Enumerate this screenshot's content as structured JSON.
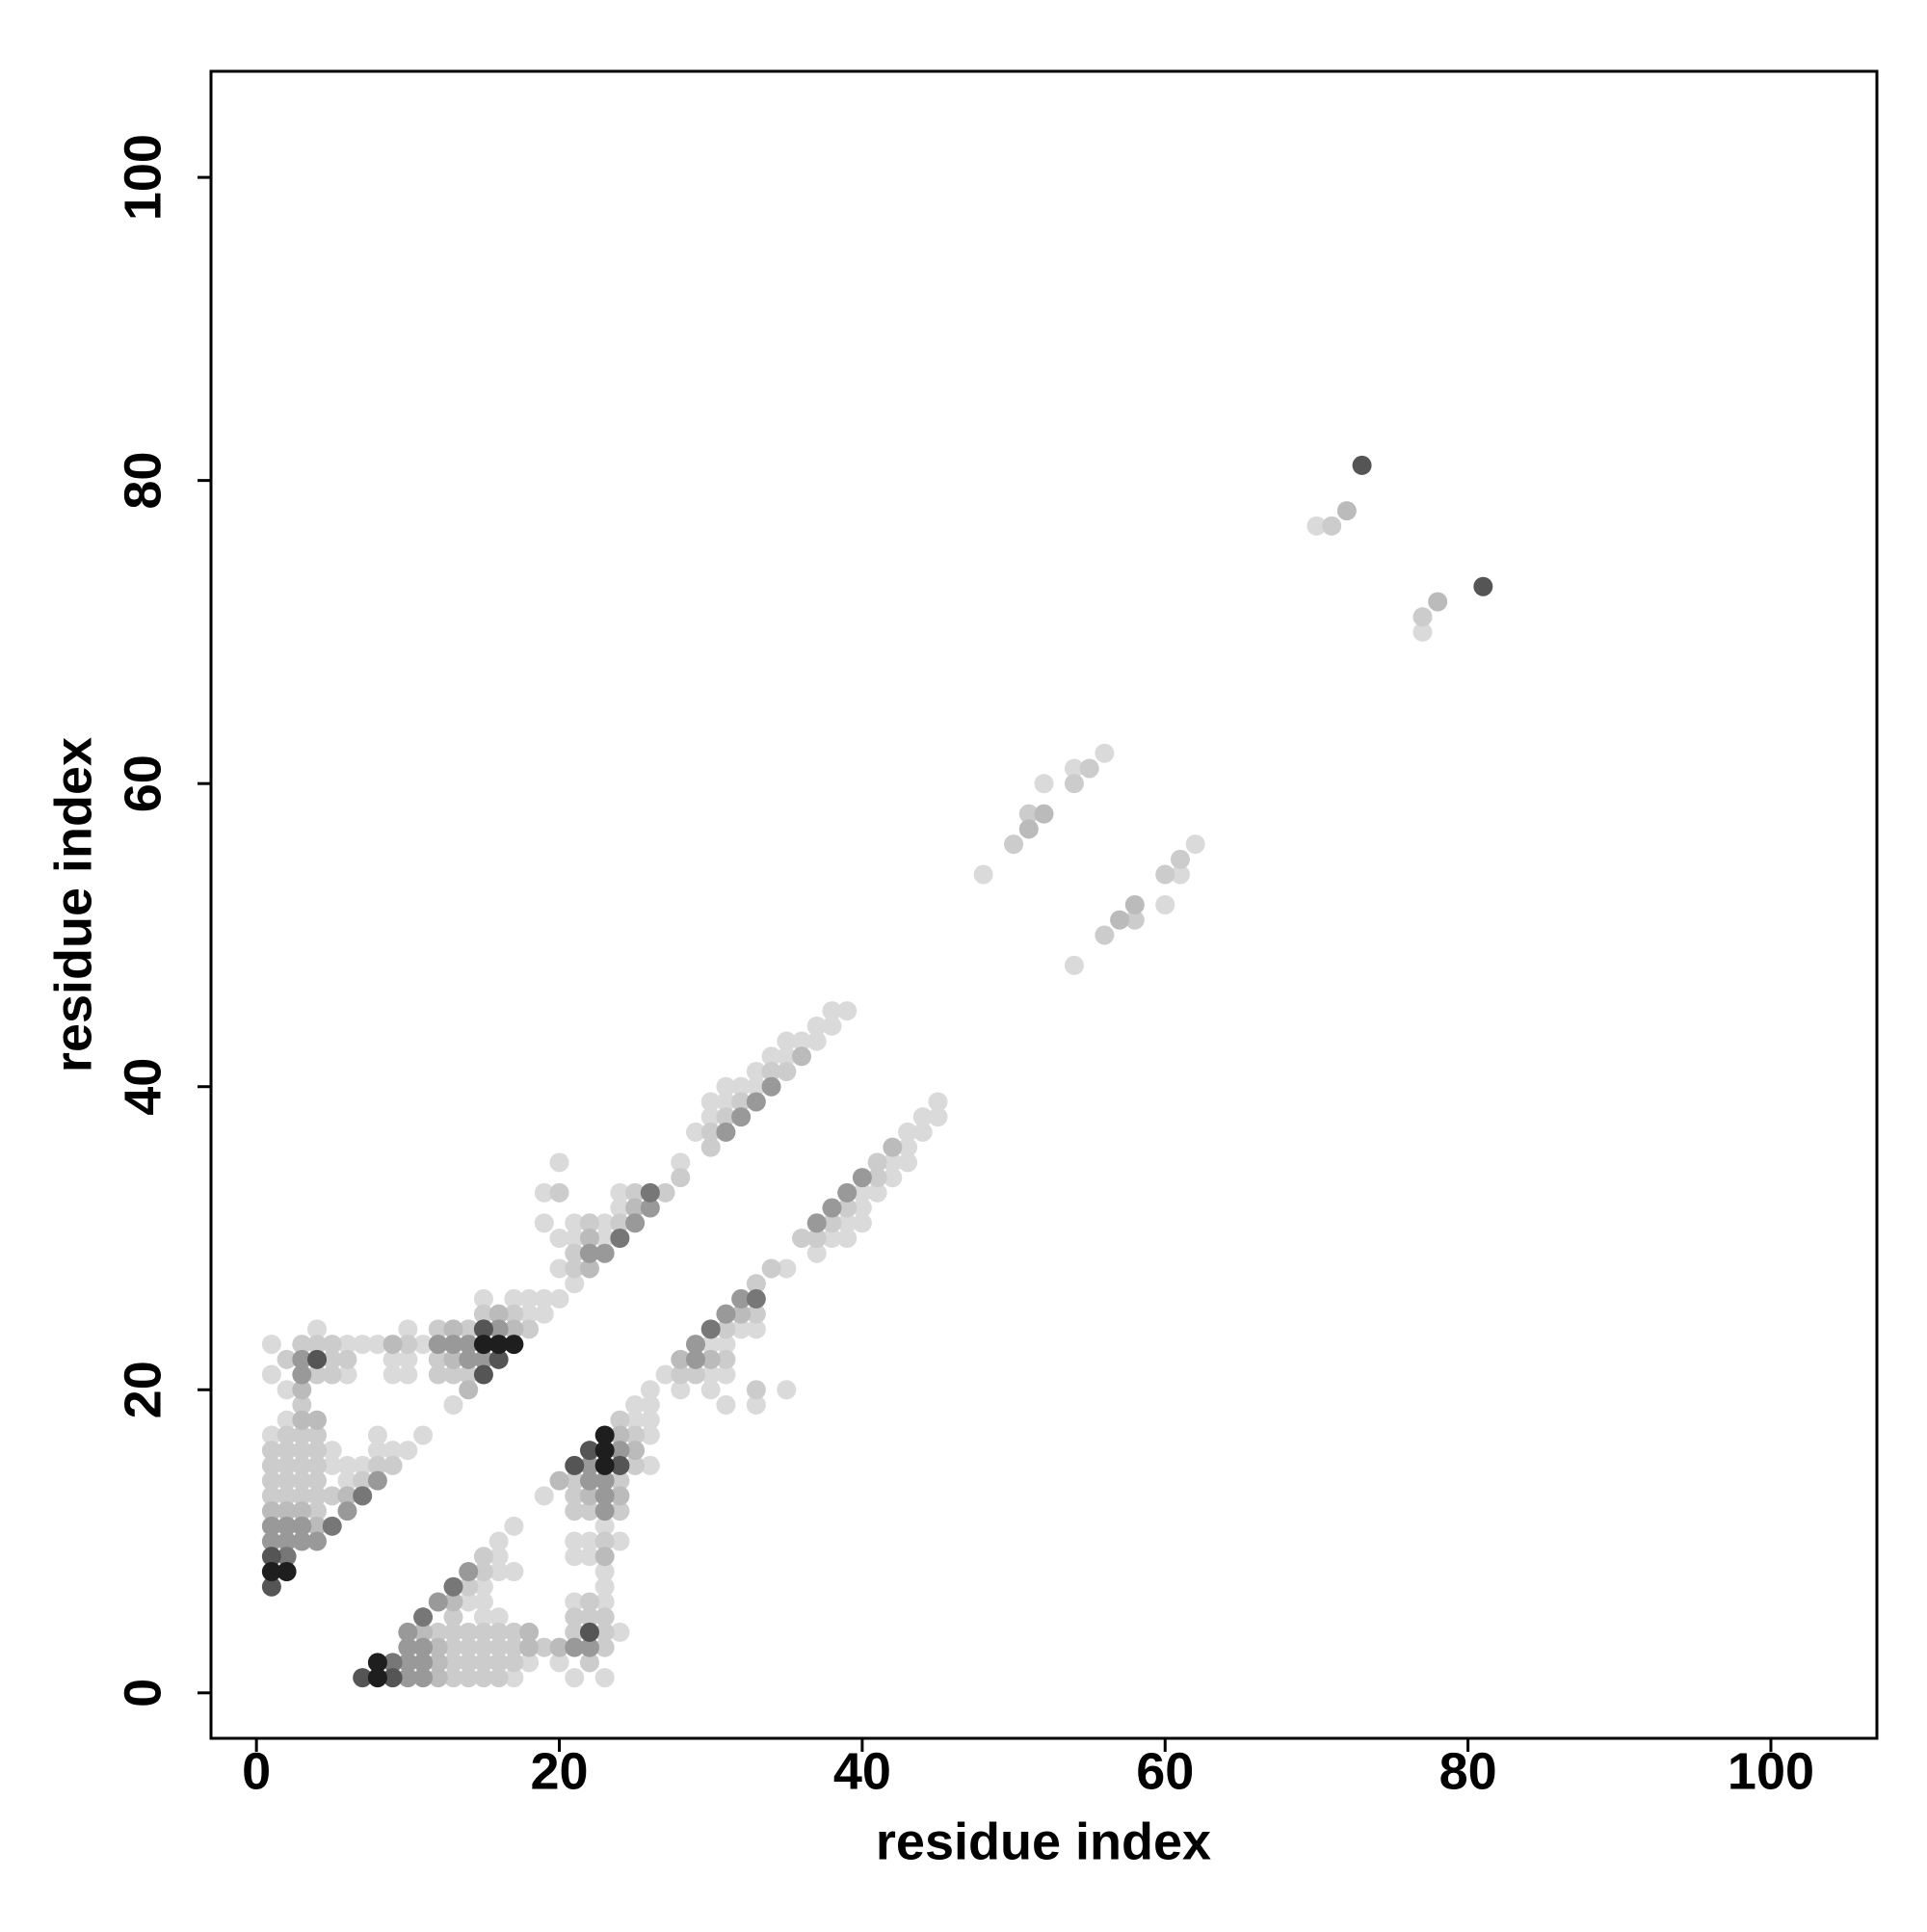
{
  "chart_data": {
    "type": "scatter",
    "x_label": "residue index",
    "y_label": "residue index",
    "xlim": [
      -3,
      107
    ],
    "ylim": [
      -3,
      107
    ],
    "xticks": [
      0,
      20,
      40,
      60,
      80,
      100
    ],
    "yticks": [
      0,
      20,
      40,
      60,
      80,
      100
    ],
    "grid": false,
    "series": [
      {
        "color": "#dadada",
        "x": [
          1,
          1,
          1,
          2,
          2,
          4,
          5,
          5,
          6,
          6,
          6,
          6,
          7,
          7,
          8,
          8,
          8,
          9,
          9,
          9,
          10,
          10,
          10,
          10,
          11,
          11,
          13,
          15,
          17,
          18,
          18,
          19,
          19,
          19,
          19,
          20,
          20,
          20,
          20,
          21,
          21,
          21,
          23,
          23,
          24,
          24,
          28,
          29,
          30,
          30,
          31,
          31,
          32,
          33,
          33,
          34,
          35,
          35,
          36,
          37,
          37,
          38,
          38,
          39,
          48,
          52,
          54,
          56,
          70,
          17,
          21,
          23,
          18,
          20,
          24,
          15,
          16,
          14,
          15,
          21,
          23,
          15,
          23,
          16,
          17,
          23,
          16,
          21,
          22,
          16,
          21,
          22,
          24,
          17,
          23,
          19,
          26,
          26,
          25,
          26,
          25,
          26,
          31,
          33,
          26,
          28,
          30,
          35,
          27,
          30,
          31,
          30,
          31,
          32,
          33,
          35,
          37,
          38,
          39,
          39,
          40,
          40,
          40,
          41,
          42,
          42,
          43,
          43,
          43,
          44,
          44,
          45,
          45,
          54,
          60,
          61,
          62,
          77
        ],
        "y": [
          17,
          21,
          23,
          18,
          20,
          24,
          15,
          16,
          14,
          15,
          21,
          23,
          15,
          23,
          16,
          17,
          23,
          16,
          21,
          22,
          16,
          21,
          22,
          24,
          17,
          23,
          19,
          26,
          26,
          25,
          26,
          25,
          26,
          31,
          33,
          26,
          28,
          30,
          35,
          27,
          30,
          31,
          30,
          31,
          32,
          33,
          35,
          37,
          38,
          39,
          39,
          40,
          40,
          40,
          41,
          42,
          42,
          43,
          43,
          43,
          44,
          44,
          45,
          45,
          54,
          60,
          61,
          62,
          77,
          1,
          1,
          1,
          2,
          2,
          4,
          5,
          5,
          6,
          6,
          6,
          6,
          7,
          7,
          8,
          8,
          8,
          9,
          9,
          9,
          10,
          10,
          10,
          10,
          11,
          11,
          13,
          15,
          17,
          18,
          18,
          19,
          19,
          19,
          19,
          20,
          20,
          20,
          20,
          21,
          21,
          21,
          23,
          23,
          24,
          24,
          28,
          29,
          30,
          30,
          31,
          31,
          32,
          33,
          33,
          34,
          35,
          35,
          36,
          37,
          37,
          38,
          38,
          39,
          48,
          52,
          54,
          56,
          70
        ]
      },
      {
        "color": "#cccccc",
        "x": [
          1,
          1,
          1,
          1,
          2,
          2,
          2,
          2,
          2,
          2,
          3,
          3,
          3,
          3,
          3,
          3,
          3,
          4,
          4,
          4,
          4,
          4,
          4,
          4,
          4,
          5,
          5,
          5,
          5,
          6,
          7,
          8,
          9,
          10,
          12,
          12,
          12,
          13,
          14,
          14,
          15,
          17,
          18,
          20,
          21,
          21,
          22,
          24,
          25,
          27,
          28,
          30,
          30,
          31,
          32,
          34,
          35,
          50,
          51,
          54,
          55,
          71,
          13,
          14,
          15,
          16,
          13,
          14,
          15,
          16,
          17,
          22,
          13,
          14,
          15,
          16,
          17,
          19,
          23,
          12,
          13,
          14,
          15,
          16,
          17,
          21,
          23,
          13,
          21,
          22,
          23,
          22,
          14,
          15,
          15,
          23,
          21,
          22,
          24,
          21,
          21,
          24,
          25,
          25,
          24,
          33,
          28,
          29,
          31,
          31,
          33,
          33,
          34,
          36,
          37,
          38,
          39,
          41,
          41,
          56,
          58,
          60,
          61,
          77
        ],
        "y": [
          13,
          14,
          15,
          16,
          13,
          14,
          15,
          16,
          17,
          22,
          13,
          14,
          15,
          16,
          17,
          19,
          23,
          12,
          13,
          14,
          15,
          16,
          17,
          21,
          23,
          13,
          21,
          22,
          23,
          22,
          14,
          15,
          15,
          23,
          21,
          22,
          24,
          21,
          21,
          24,
          25,
          25,
          24,
          33,
          28,
          29,
          31,
          31,
          33,
          33,
          34,
          36,
          37,
          38,
          39,
          41,
          41,
          56,
          58,
          60,
          61,
          77,
          1,
          1,
          1,
          1,
          2,
          2,
          2,
          2,
          2,
          2,
          3,
          3,
          3,
          3,
          3,
          3,
          3,
          4,
          4,
          4,
          4,
          4,
          4,
          4,
          4,
          5,
          5,
          5,
          5,
          6,
          7,
          8,
          9,
          10,
          12,
          12,
          12,
          13,
          14,
          14,
          15,
          17,
          18,
          20,
          21,
          21,
          22,
          24,
          25,
          27,
          28,
          30,
          30,
          31,
          32,
          34,
          35,
          50,
          51,
          54,
          55,
          71
        ]
      },
      {
        "color": "#bbbbbb",
        "x": [
          1,
          2,
          3,
          3,
          3,
          4,
          4,
          6,
          9,
          13,
          13,
          14,
          16,
          17,
          22,
          22,
          25,
          36,
          51,
          52,
          72,
          12,
          12,
          12,
          18,
          20,
          11,
          18,
          13,
          23,
          22,
          24,
          20,
          25,
          24,
          28,
          30,
          32,
          42,
          57,
          58,
          78
        ],
        "y": [
          12,
          12,
          12,
          18,
          20,
          11,
          18,
          13,
          23,
          22,
          24,
          20,
          25,
          24,
          28,
          30,
          32,
          42,
          57,
          58,
          78,
          1,
          2,
          3,
          3,
          3,
          4,
          4,
          6,
          9,
          13,
          13,
          14,
          16,
          17,
          22,
          22,
          25,
          36,
          51,
          52,
          72
        ]
      },
      {
        "color": "#999999",
        "x": [
          1,
          1,
          2,
          2,
          3,
          3,
          3,
          3,
          4,
          6,
          8,
          12,
          13,
          14,
          14,
          15,
          16,
          22,
          23,
          25,
          26,
          31,
          32,
          33,
          34,
          10,
          11,
          10,
          11,
          10,
          11,
          21,
          22,
          10,
          12,
          14,
          23,
          23,
          22,
          23,
          22,
          24,
          29,
          29,
          31,
          32,
          37,
          38,
          39,
          40
        ],
        "y": [
          10,
          11,
          10,
          11,
          10,
          11,
          21,
          22,
          10,
          12,
          14,
          23,
          23,
          22,
          23,
          22,
          24,
          29,
          29,
          31,
          32,
          37,
          38,
          39,
          40,
          1,
          1,
          2,
          2,
          3,
          3,
          3,
          3,
          4,
          6,
          8,
          12,
          13,
          14,
          14,
          15,
          16,
          22,
          23,
          25,
          26,
          31,
          32,
          33,
          34
        ]
      },
      {
        "color": "#777777",
        "x": [
          2,
          7,
          5,
          24,
          26,
          9,
          13,
          11,
          30,
          33
        ],
        "y": [
          9,
          13,
          11,
          30,
          33,
          2,
          7,
          5,
          24,
          26
        ]
      },
      {
        "color": "#555555",
        "x": [
          1,
          1,
          4,
          15,
          15,
          16,
          73,
          7,
          9,
          22,
          21,
          24,
          22,
          81
        ],
        "y": [
          7,
          9,
          22,
          21,
          24,
          22,
          81,
          1,
          1,
          4,
          15,
          15,
          16,
          73
        ]
      },
      {
        "color": "#1e1e1e",
        "x": [
          1,
          2,
          15,
          16,
          17,
          8,
          8,
          23,
          23,
          23
        ],
        "y": [
          8,
          8,
          23,
          23,
          23,
          1,
          2,
          15,
          16,
          17
        ]
      }
    ]
  }
}
